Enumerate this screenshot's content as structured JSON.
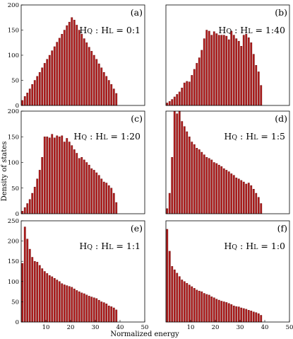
{
  "figure": {
    "ylabel": "Density of states",
    "xlabel": "Normalized energy"
  },
  "chart_data": [
    {
      "type": "bar",
      "panel": "(a)",
      "ratio_main": "H",
      "ratio_sub1": "Q",
      "ratio_mid": " : H",
      "ratio_sub2": "L",
      "ratio_value": " = 0:1",
      "xlim": [
        0,
        50
      ],
      "ylim": [
        0,
        200
      ],
      "x_ticks": [
        "10",
        "20",
        "30",
        "40",
        "50"
      ],
      "y_ticks": [
        "0",
        "50",
        "100",
        "150",
        "200"
      ],
      "show_x_ticks": false,
      "show_y_ticks": true,
      "x": [
        1,
        2,
        3,
        4,
        5,
        6,
        7,
        8,
        9,
        10,
        11,
        12,
        13,
        14,
        15,
        16,
        17,
        18,
        19,
        20,
        21,
        22,
        23,
        24,
        25,
        26,
        27,
        28,
        29,
        30,
        31,
        32,
        33,
        34,
        35,
        36,
        37,
        38,
        39
      ],
      "values": [
        10,
        18,
        25,
        33,
        42,
        50,
        58,
        66,
        75,
        84,
        92,
        100,
        109,
        117,
        126,
        134,
        142,
        150,
        159,
        166,
        175,
        170,
        160,
        150,
        142,
        133,
        125,
        116,
        108,
        100,
        92,
        83,
        75,
        66,
        58,
        50,
        42,
        33,
        24
      ]
    },
    {
      "type": "bar",
      "panel": "(b)",
      "ratio_main": "H",
      "ratio_sub1": "Q",
      "ratio_mid": " : H",
      "ratio_sub2": "L",
      "ratio_value": " = 1:40",
      "xlim": [
        0,
        50
      ],
      "ylim": [
        0,
        200
      ],
      "x_ticks": [
        "10",
        "20",
        "30",
        "40",
        "50"
      ],
      "y_ticks": [
        "0",
        "50",
        "100",
        "150",
        "200"
      ],
      "show_x_ticks": false,
      "show_y_ticks": false,
      "x": [
        1,
        2,
        3,
        4,
        5,
        6,
        7,
        8,
        9,
        10,
        11,
        12,
        13,
        14,
        15,
        16,
        17,
        18,
        19,
        20,
        21,
        22,
        23,
        24,
        25,
        26,
        27,
        28,
        29,
        30,
        31,
        32,
        33,
        34,
        35,
        36,
        37,
        38,
        39
      ],
      "values": [
        5,
        8,
        12,
        17,
        22,
        27,
        35,
        45,
        48,
        47,
        60,
        72,
        84,
        95,
        110,
        133,
        150,
        148,
        140,
        147,
        143,
        140,
        140,
        140,
        138,
        131,
        148,
        140,
        133,
        128,
        118,
        140,
        142,
        135,
        125,
        102,
        80,
        67,
        40
      ]
    },
    {
      "type": "bar",
      "panel": "(c)",
      "ratio_main": "H",
      "ratio_sub1": "Q",
      "ratio_mid": " : H",
      "ratio_sub2": "L",
      "ratio_value": " = 1:20",
      "xlim": [
        0,
        50
      ],
      "ylim": [
        0,
        200
      ],
      "x_ticks": [
        "10",
        "20",
        "30",
        "40",
        "50"
      ],
      "y_ticks": [
        "0",
        "50",
        "100",
        "150",
        "200"
      ],
      "show_x_ticks": false,
      "show_y_ticks": true,
      "x": [
        1,
        2,
        3,
        4,
        5,
        6,
        7,
        8,
        9,
        10,
        11,
        12,
        13,
        14,
        15,
        16,
        17,
        18,
        19,
        20,
        21,
        22,
        23,
        24,
        25,
        26,
        27,
        28,
        29,
        30,
        31,
        32,
        33,
        34,
        35,
        36,
        37,
        38,
        39
      ],
      "values": [
        5,
        12,
        20,
        28,
        40,
        52,
        68,
        85,
        110,
        150,
        150,
        148,
        155,
        148,
        152,
        150,
        152,
        140,
        147,
        140,
        133,
        125,
        118,
        108,
        110,
        105,
        100,
        95,
        88,
        85,
        80,
        75,
        68,
        62,
        60,
        55,
        50,
        40,
        22
      ]
    },
    {
      "type": "bar",
      "panel": "(d)",
      "ratio_main": "H",
      "ratio_sub1": "Q",
      "ratio_mid": " : H",
      "ratio_sub2": "L",
      "ratio_value": " = 1:5",
      "xlim": [
        0,
        50
      ],
      "ylim": [
        0,
        200
      ],
      "x_ticks": [
        "10",
        "20",
        "30",
        "40",
        "50"
      ],
      "y_ticks": [
        "0",
        "50",
        "100",
        "150",
        "200"
      ],
      "show_x_ticks": false,
      "show_y_ticks": false,
      "x": [
        1,
        2,
        3,
        4,
        5,
        6,
        7,
        8,
        9,
        10,
        11,
        12,
        13,
        14,
        15,
        16,
        17,
        18,
        19,
        20,
        21,
        22,
        23,
        24,
        25,
        26,
        27,
        28,
        29,
        30,
        31,
        32,
        33,
        34,
        35,
        36,
        37,
        38,
        39
      ],
      "values": [
        10,
        40,
        110,
        200,
        195,
        200,
        180,
        170,
        160,
        150,
        140,
        135,
        128,
        125,
        120,
        115,
        110,
        108,
        105,
        100,
        98,
        95,
        92,
        88,
        85,
        82,
        78,
        75,
        70,
        68,
        65,
        62,
        58,
        60,
        55,
        48,
        40,
        32,
        20
      ]
    },
    {
      "type": "bar",
      "panel": "(e)",
      "ratio_main": "H",
      "ratio_sub1": "Q",
      "ratio_mid": " : H",
      "ratio_sub2": "L",
      "ratio_value": " = 1:1",
      "xlim": [
        0,
        50
      ],
      "ylim": [
        0,
        250
      ],
      "x_ticks": [
        "10",
        "20",
        "30",
        "40",
        "50"
      ],
      "y_ticks": [
        "0",
        "50",
        "100",
        "150",
        "200",
        "250"
      ],
      "show_x_ticks": true,
      "show_y_ticks": true,
      "x": [
        1,
        2,
        3,
        4,
        5,
        6,
        7,
        8,
        9,
        10,
        11,
        12,
        13,
        14,
        15,
        16,
        17,
        18,
        19,
        20,
        21,
        22,
        23,
        24,
        25,
        26,
        27,
        28,
        29,
        30,
        31,
        32,
        33,
        34,
        35,
        36,
        37,
        38,
        39
      ],
      "values": [
        145,
        235,
        205,
        180,
        160,
        150,
        148,
        140,
        132,
        125,
        120,
        115,
        112,
        108,
        104,
        100,
        95,
        92,
        90,
        88,
        86,
        82,
        78,
        75,
        72,
        70,
        67,
        64,
        62,
        60,
        58,
        54,
        50,
        48,
        45,
        40,
        38,
        35,
        30
      ]
    },
    {
      "type": "bar",
      "panel": "(f)",
      "ratio_main": "H",
      "ratio_sub1": "Q",
      "ratio_mid": " : H",
      "ratio_sub2": "L",
      "ratio_value": " = 1:0",
      "xlim": [
        0,
        50
      ],
      "ylim": [
        0,
        300
      ],
      "x_ticks": [
        "10",
        "20",
        "30",
        "40",
        "50"
      ],
      "y_ticks": [
        "0",
        "50",
        "100",
        "150",
        "200",
        "250",
        "300"
      ],
      "show_x_ticks": true,
      "show_y_ticks": false,
      "x": [
        1,
        2,
        3,
        4,
        5,
        6,
        7,
        8,
        9,
        10,
        11,
        12,
        13,
        14,
        15,
        16,
        17,
        18,
        19,
        20,
        21,
        22,
        23,
        24,
        25,
        26,
        27,
        28,
        29,
        30,
        31,
        32,
        33,
        34,
        35,
        36,
        37,
        38,
        39
      ],
      "values": [
        275,
        210,
        165,
        155,
        145,
        135,
        125,
        120,
        115,
        110,
        105,
        100,
        95,
        92,
        90,
        85,
        82,
        80,
        75,
        72,
        68,
        65,
        62,
        60,
        58,
        55,
        52,
        48,
        46,
        45,
        42,
        40,
        38,
        35,
        33,
        30,
        28,
        25,
        20
      ]
    }
  ]
}
